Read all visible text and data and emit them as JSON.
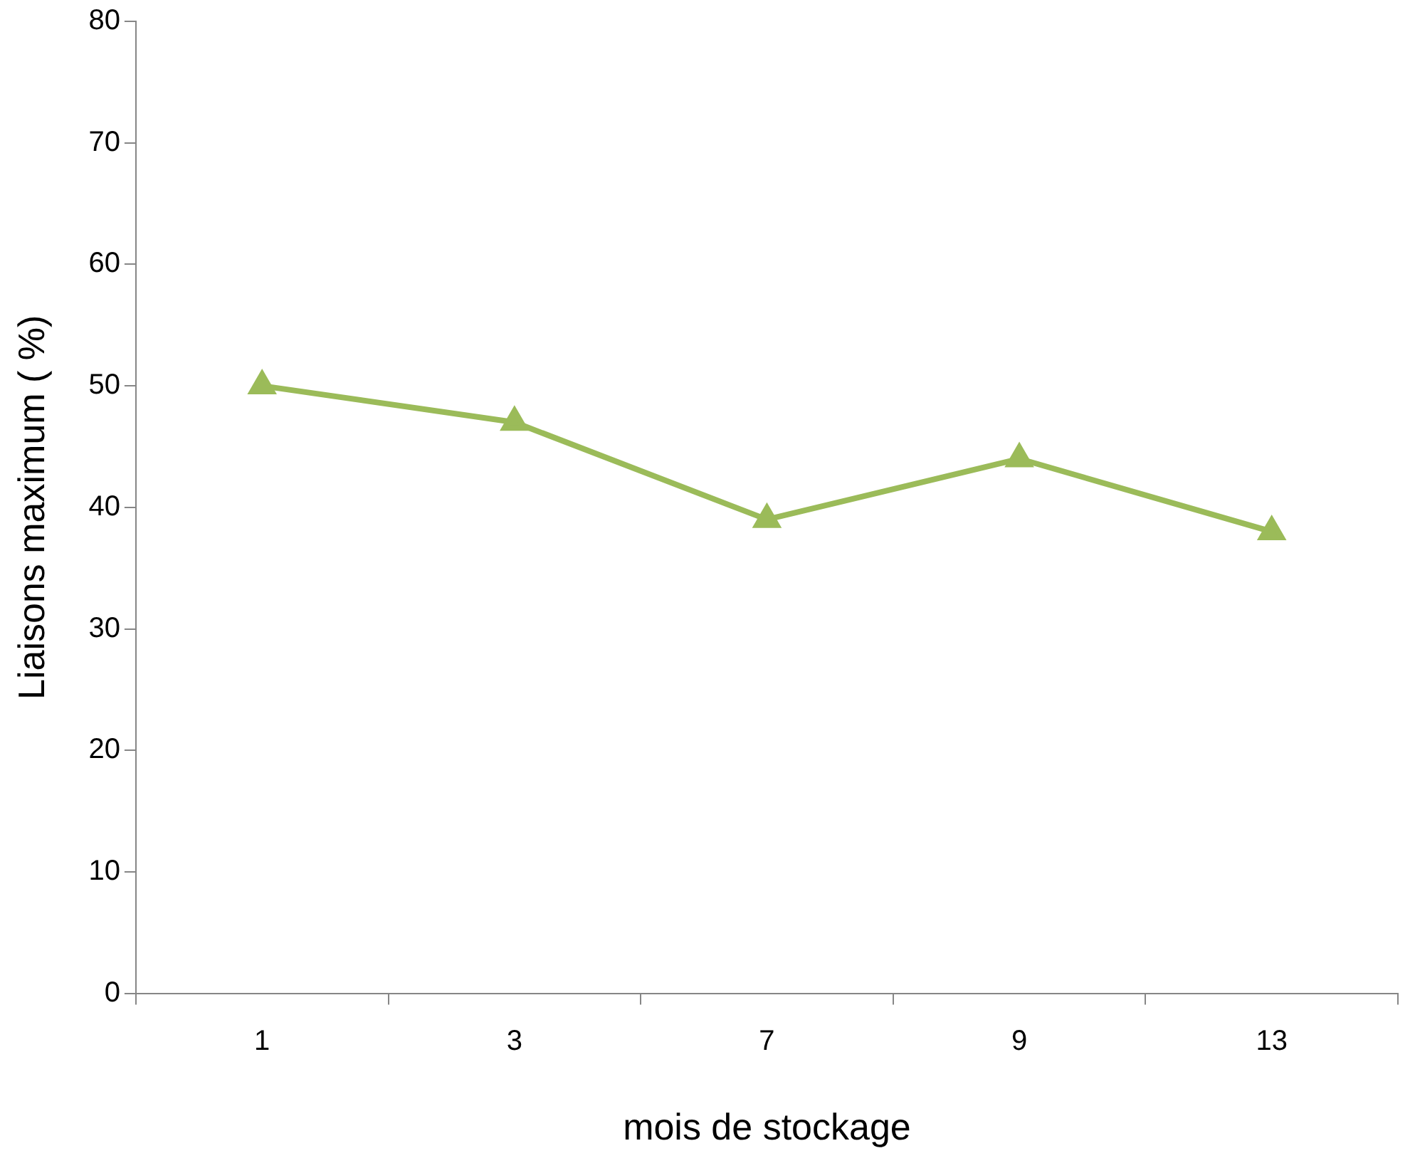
{
  "chart_data": {
    "type": "line",
    "xlabel": "mois de stockage",
    "ylabel": "Liaisons maximum ( %)",
    "categories": [
      "1",
      "3",
      "7",
      "9",
      "13"
    ],
    "series": [
      {
        "color": "#9bbb59",
        "values": [
          50,
          47,
          39,
          44,
          38
        ]
      }
    ],
    "ylim": [
      0,
      80
    ],
    "yticks": [
      0,
      10,
      20,
      30,
      40,
      50,
      60,
      70,
      80
    ],
    "grid": false,
    "legend": false,
    "marker": "triangle",
    "line_style": "solid"
  }
}
